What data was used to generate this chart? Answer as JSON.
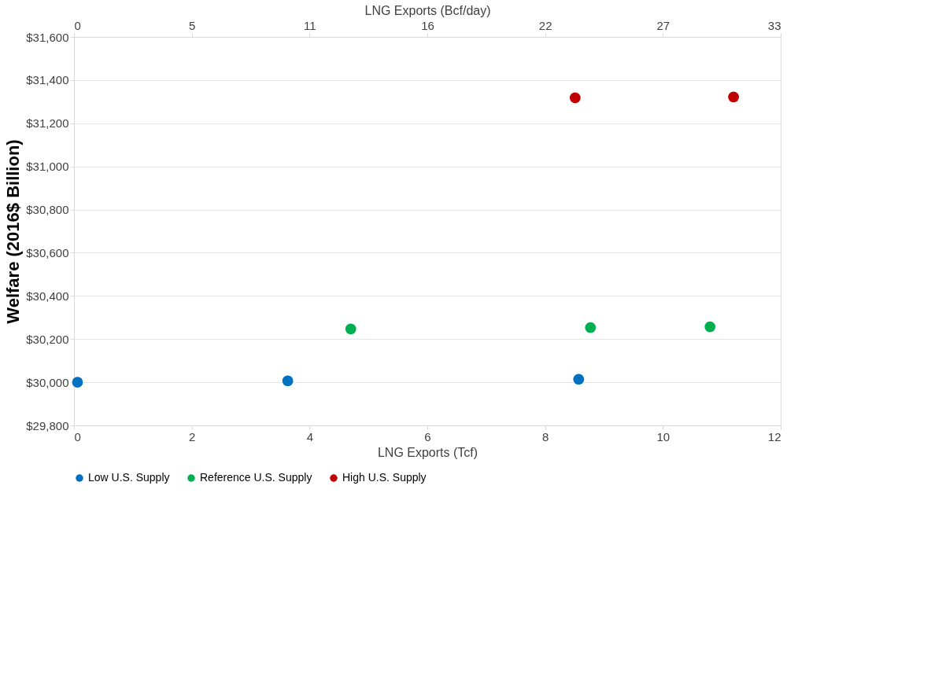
{
  "chart_data": {
    "type": "scatter",
    "xlabel": "LNG Exports (Tcf)",
    "ylabel": "Welfare (2016$ Billion)",
    "x2label": "LNG Exports (Bcf/day)",
    "series": [
      {
        "name": "Low U.S. Supply",
        "color": "#0070c0",
        "x": [
          0.06,
          3.63,
          8.57
        ],
        "values": [
          30000,
          30006,
          30014
        ]
      },
      {
        "name": "Reference U.S. Supply",
        "color": "#00b050",
        "x": [
          4.7,
          8.77,
          10.8
        ],
        "values": [
          30247,
          30253,
          30257
        ]
      },
      {
        "name": "High U.S. Supply",
        "color": "#c00000",
        "x": [
          8.51,
          11.2
        ],
        "values": [
          31318,
          31322
        ]
      }
    ],
    "xlim": [
      0,
      12
    ],
    "xticks": [
      0,
      2,
      4,
      6,
      8,
      10,
      12
    ],
    "x2lim": [
      0,
      33
    ],
    "x2ticks": [
      0,
      {
        "value": 5.5,
        "label": "5"
      },
      11,
      {
        "value": 16.5,
        "label": "16"
      },
      22,
      {
        "value": 27.5,
        "label": "27"
      },
      33
    ],
    "ylim": [
      29800,
      31600
    ],
    "yticks": [
      {
        "value": 29800,
        "label": "$29,800"
      },
      {
        "value": 30000,
        "label": "$30,000"
      },
      {
        "value": 30200,
        "label": "$30,200"
      },
      {
        "value": 30400,
        "label": "$30,400"
      },
      {
        "value": 30600,
        "label": "$30,600"
      },
      {
        "value": 30800,
        "label": "$30,800"
      },
      {
        "value": 31000,
        "label": "$31,000"
      },
      {
        "value": 31200,
        "label": "$31,200"
      },
      {
        "value": 31400,
        "label": "$31,400"
      },
      {
        "value": 31600,
        "label": "$31,600"
      }
    ],
    "grid": "y",
    "legend": "bottom",
    "marker": "circle"
  }
}
